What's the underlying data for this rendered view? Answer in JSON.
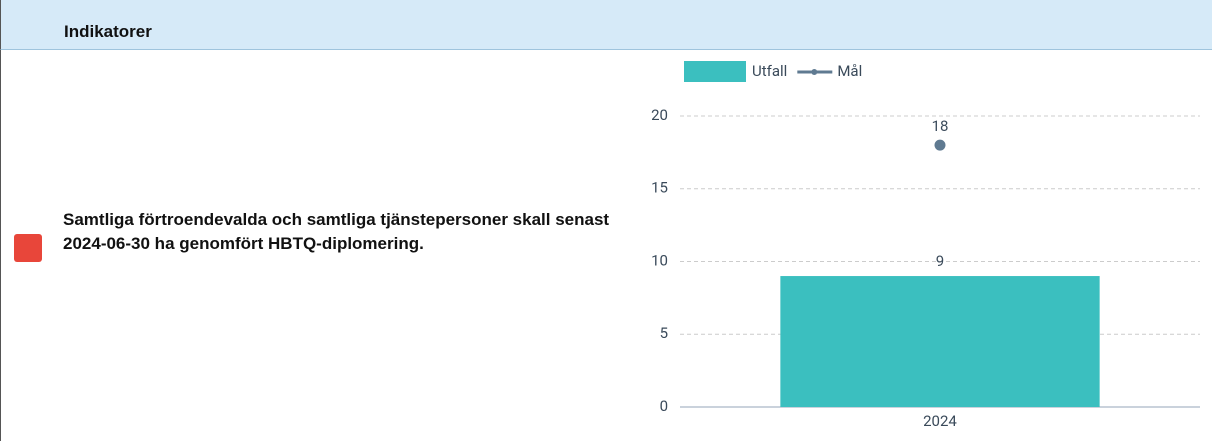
{
  "header": {
    "title": "Indikatorer"
  },
  "indicator": {
    "status_color": "#e8463a",
    "text": "Samtliga förtroendevalda och samtliga tjänstepersoner skall senast 2024-06-30 ha genomfört HBTQ-diplomering."
  },
  "chart_data": {
    "type": "bar",
    "categories": [
      "2024"
    ],
    "series": [
      {
        "name": "Utfall",
        "type": "bar",
        "color": "#3bbfbf",
        "values": [
          9
        ]
      },
      {
        "name": "Mål",
        "type": "line",
        "color": "#5f7a91",
        "values": [
          18
        ]
      }
    ],
    "ylim": [
      0,
      20
    ],
    "yticks": [
      0,
      5,
      10,
      15,
      20
    ],
    "grid": true,
    "legend": "top"
  }
}
